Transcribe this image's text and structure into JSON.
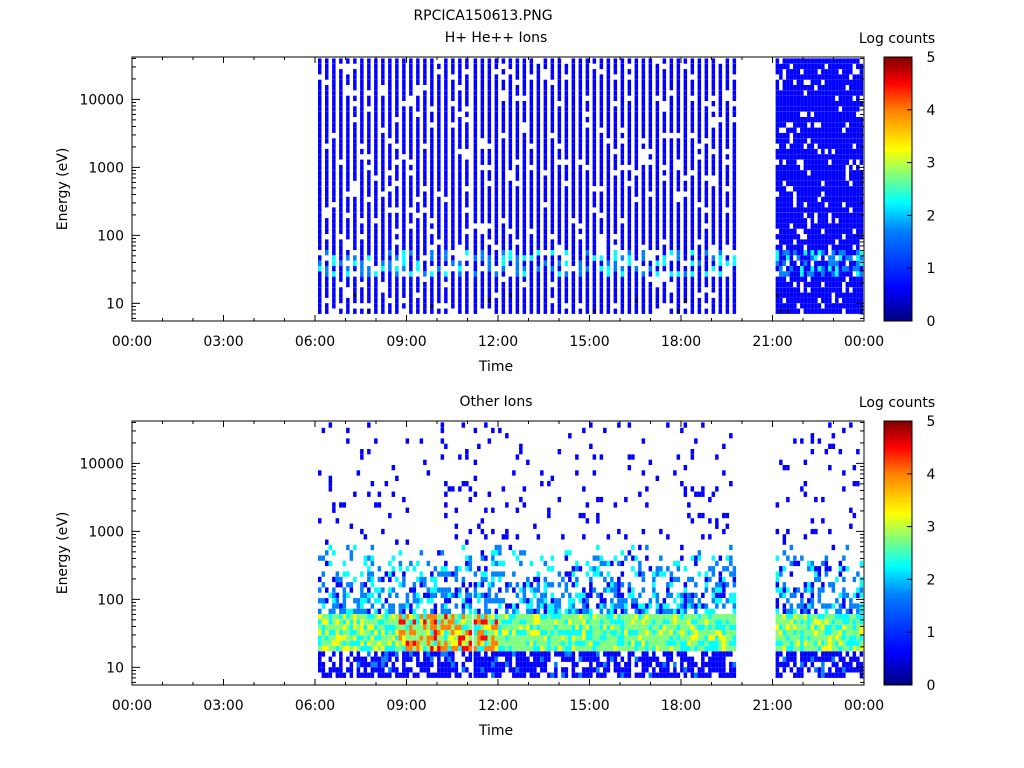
{
  "figure_title": "RPCICA150613.PNG",
  "colorscale": [
    "#00007f",
    "#0000ff",
    "#007fff",
    "#00ffff",
    "#7fff7f",
    "#ffff00",
    "#ff7f00",
    "#ff0000",
    "#7f0000"
  ],
  "chart_data": [
    {
      "type": "heatmap",
      "title": "H+ He++ Ions",
      "xlabel": "Time",
      "ylabel": "Energy (eV)",
      "yscale": "log",
      "ylim": [
        5.5,
        42000
      ],
      "xlim_hours": [
        0,
        24
      ],
      "xticks": [
        "00:00",
        "03:00",
        "06:00",
        "09:00",
        "12:00",
        "15:00",
        "18:00",
        "21:00",
        "00:00"
      ],
      "yticks": [
        {
          "value": 10,
          "label": "10"
        },
        {
          "value": 100,
          "label": "100"
        },
        {
          "value": 1000,
          "label": "1000"
        },
        {
          "value": 10000,
          "label": "10000"
        }
      ],
      "colorbar": {
        "label": "Log counts",
        "min": 0,
        "max": 5,
        "ticks": [
          "0",
          "1",
          "2",
          "3",
          "4",
          "5"
        ]
      },
      "data_intervals_hours": [
        [
          6.1,
          11.05
        ],
        [
          11.2,
          19.8
        ],
        [
          21.1,
          23.9
        ]
      ],
      "typical_log_counts": {
        "bulk": 0.5,
        "low_energy_30_60eV": 1.5
      },
      "seed": 7
    },
    {
      "type": "heatmap",
      "title": "Other Ions",
      "xlabel": "Time",
      "ylabel": "Energy (eV)",
      "yscale": "log",
      "ylim": [
        5.5,
        42000
      ],
      "xlim_hours": [
        0,
        24
      ],
      "xticks": [
        "00:00",
        "03:00",
        "06:00",
        "09:00",
        "12:00",
        "15:00",
        "18:00",
        "21:00",
        "00:00"
      ],
      "yticks": [
        {
          "value": 10,
          "label": "10"
        },
        {
          "value": 100,
          "label": "100"
        },
        {
          "value": 1000,
          "label": "1000"
        },
        {
          "value": 10000,
          "label": "10000"
        }
      ],
      "colorbar": {
        "label": "Log counts",
        "min": 0,
        "max": 5,
        "ticks": [
          "0",
          "1",
          "2",
          "3",
          "4",
          "5"
        ]
      },
      "data_intervals_hours": [
        [
          6.1,
          11.05
        ],
        [
          11.2,
          19.8
        ],
        [
          21.1,
          23.9
        ]
      ],
      "typical_log_counts": {
        "band_20_60eV": 2.5,
        "peak_09_12h": 4.0
      },
      "seed": 21
    }
  ]
}
